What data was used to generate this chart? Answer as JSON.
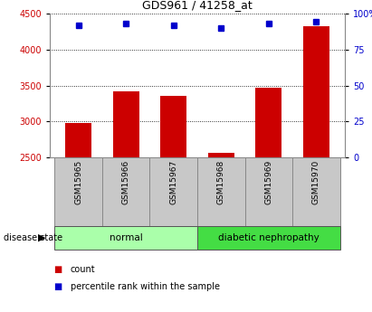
{
  "title": "GDS961 / 41258_at",
  "samples": [
    "GSM15965",
    "GSM15966",
    "GSM15967",
    "GSM15968",
    "GSM15969",
    "GSM15970"
  ],
  "counts": [
    2980,
    3420,
    3360,
    2560,
    3470,
    4320
  ],
  "percentile_ranks": [
    92,
    93,
    92,
    90,
    93,
    94
  ],
  "y_min": 2500,
  "y_max": 4500,
  "y_ticks": [
    2500,
    3000,
    3500,
    4000,
    4500
  ],
  "y2_ticks": [
    0,
    25,
    50,
    75,
    100
  ],
  "y2_tick_positions": [
    2500,
    3000,
    3500,
    4000,
    4500
  ],
  "groups": [
    {
      "label": "normal",
      "indices": [
        0,
        1,
        2
      ],
      "color": "#aaffaa"
    },
    {
      "label": "diabetic nephropathy",
      "indices": [
        3,
        4,
        5
      ],
      "color": "#44dd44"
    }
  ],
  "bar_color": "#cc0000",
  "dot_color": "#0000cc",
  "grid_color": "#000000",
  "bg_color": "#ffffff",
  "tick_bg": "#c8c8c8",
  "label_color_left": "#cc0000",
  "label_color_right": "#0000cc",
  "bar_width": 0.55,
  "disease_state_label": "disease state",
  "legend_count": "count",
  "legend_pct": "percentile rank within the sample"
}
